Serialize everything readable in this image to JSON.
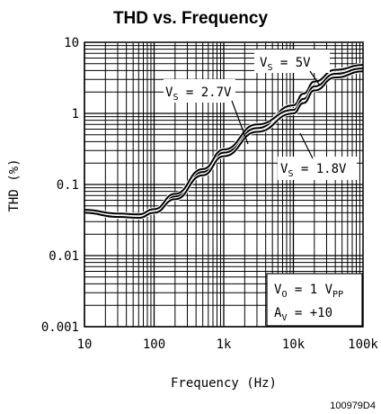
{
  "chart_data": {
    "type": "line",
    "title": "THD vs. Frequency",
    "xlabel": "Frequency (Hz)",
    "ylabel": "THD (%)",
    "x_scale": "log",
    "y_scale": "log",
    "xlim": [
      10,
      100000
    ],
    "ylim": [
      0.001,
      10
    ],
    "grid": true,
    "x_ticks": [
      "10",
      "100",
      "1k",
      "10k",
      "100k"
    ],
    "y_ticks": [
      "10",
      "1",
      "0.1",
      "0.01",
      "0.001"
    ],
    "series": [
      {
        "name": "VS = 5V",
        "x": [
          10,
          30,
          60,
          100,
          200,
          500,
          1000,
          3000,
          10000,
          14000,
          20000,
          40000,
          100000
        ],
        "y": [
          0.042,
          0.037,
          0.036,
          0.042,
          0.068,
          0.15,
          0.28,
          0.62,
          1.3,
          1.9,
          2.8,
          4.1,
          4.8
        ]
      },
      {
        "name": "VS = 2.7V",
        "x": [
          10,
          30,
          60,
          100,
          200,
          500,
          1000,
          3000,
          10000,
          14000,
          20000,
          40000,
          100000
        ],
        "y": [
          0.044,
          0.039,
          0.038,
          0.045,
          0.074,
          0.165,
          0.31,
          0.7,
          1.12,
          1.6,
          2.4,
          3.6,
          4.3
        ]
      },
      {
        "name": "VS = 1.8V",
        "x": [
          10,
          30,
          60,
          100,
          200,
          500,
          1000,
          3000,
          10000,
          14000,
          20000,
          40000,
          100000
        ],
        "y": [
          0.04,
          0.035,
          0.034,
          0.04,
          0.062,
          0.135,
          0.25,
          0.55,
          1.0,
          1.4,
          2.1,
          3.2,
          3.9
        ]
      }
    ],
    "annotations": {
      "vs5": {
        "main": "V",
        "sub": "S",
        "rest": " = 5V"
      },
      "vs27": {
        "main": "V",
        "sub": "S",
        "rest": " = 2.7V"
      },
      "vs18": {
        "main": "V",
        "sub": "S",
        "rest": " = 1.8V"
      },
      "conditions": [
        {
          "main": "V",
          "sub": "O",
          "rest": " = 1 V",
          "sub2": "PP"
        },
        {
          "main": "A",
          "sub": "V",
          "rest": " = +10",
          "sub2": ""
        }
      ]
    },
    "figure_id": "100979D4"
  }
}
